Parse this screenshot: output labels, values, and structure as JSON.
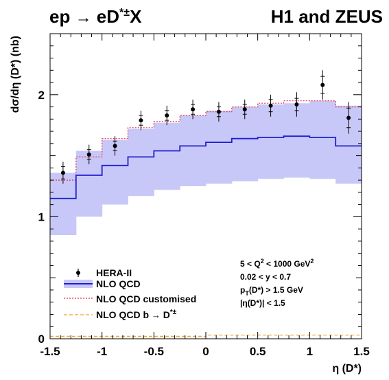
{
  "chart_data": {
    "type": "line",
    "title_left": "ep → eD*±X",
    "title_right": "H1 and ZEUS",
    "xlabel": "η (D*)",
    "ylabel": "dσ/dη (D*) (nb)",
    "xlim": [
      -1.5,
      1.5
    ],
    "ylim": [
      0,
      2.5
    ],
    "x_ticks": [
      "-1.5",
      "-1",
      "-0.5",
      "0",
      "0.5",
      "1",
      "1.5"
    ],
    "y_ticks": [
      "0",
      "1",
      "2"
    ],
    "bin_edges": [
      -1.5,
      -1.25,
      -1.0,
      -0.75,
      -0.5,
      -0.25,
      0.0,
      0.25,
      0.5,
      0.75,
      1.0,
      1.25,
      1.5
    ],
    "series": [
      {
        "name": "HERA-II",
        "kind": "points",
        "x": [
          -1.375,
          -1.125,
          -0.875,
          -0.625,
          -0.375,
          -0.125,
          0.125,
          0.375,
          0.625,
          0.875,
          1.125,
          1.375
        ],
        "y": [
          1.36,
          1.51,
          1.58,
          1.79,
          1.83,
          1.88,
          1.86,
          1.88,
          1.91,
          1.92,
          2.08,
          1.81
        ],
        "err_stat": [
          0.05,
          0.04,
          0.04,
          0.04,
          0.04,
          0.04,
          0.04,
          0.04,
          0.05,
          0.05,
          0.07,
          0.08
        ],
        "err_tot": [
          0.09,
          0.08,
          0.08,
          0.08,
          0.08,
          0.08,
          0.08,
          0.08,
          0.09,
          0.1,
          0.12,
          0.13
        ],
        "color": "#000000"
      },
      {
        "name": "NLO QCD",
        "kind": "histogram",
        "values": [
          1.15,
          1.34,
          1.42,
          1.49,
          1.54,
          1.58,
          1.61,
          1.64,
          1.65,
          1.66,
          1.65,
          1.58
        ],
        "band_low": [
          0.85,
          1.0,
          1.1,
          1.17,
          1.22,
          1.25,
          1.27,
          1.29,
          1.31,
          1.32,
          1.31,
          1.27
        ],
        "band_high": [
          1.36,
          1.54,
          1.63,
          1.72,
          1.77,
          1.83,
          1.87,
          1.9,
          1.92,
          1.93,
          1.95,
          1.91
        ],
        "color": "#1f1fcf",
        "band_color": "#c8c8f8"
      },
      {
        "name": "NLO QCD customised",
        "kind": "histogram",
        "values": [
          1.3,
          1.49,
          1.64,
          1.73,
          1.78,
          1.83,
          1.86,
          1.9,
          1.93,
          1.95,
          1.95,
          1.9
        ],
        "color": "#e0304a",
        "dash": "2,2"
      },
      {
        "name": "NLO QCD b → D*±",
        "kind": "histogram",
        "values": [
          0.02,
          0.02,
          0.02,
          0.02,
          0.02,
          0.02,
          0.03,
          0.03,
          0.03,
          0.03,
          0.03,
          0.03
        ],
        "color": "#f0a020",
        "dash": "5,3"
      }
    ],
    "cuts": [
      "5 < Q² < 1000 GeV²",
      "0.02 < y < 0.7",
      "p_T(D*) > 1.5 GeV",
      "|η(D*)| < 1.5"
    ],
    "legend_position": "bottom-left"
  }
}
